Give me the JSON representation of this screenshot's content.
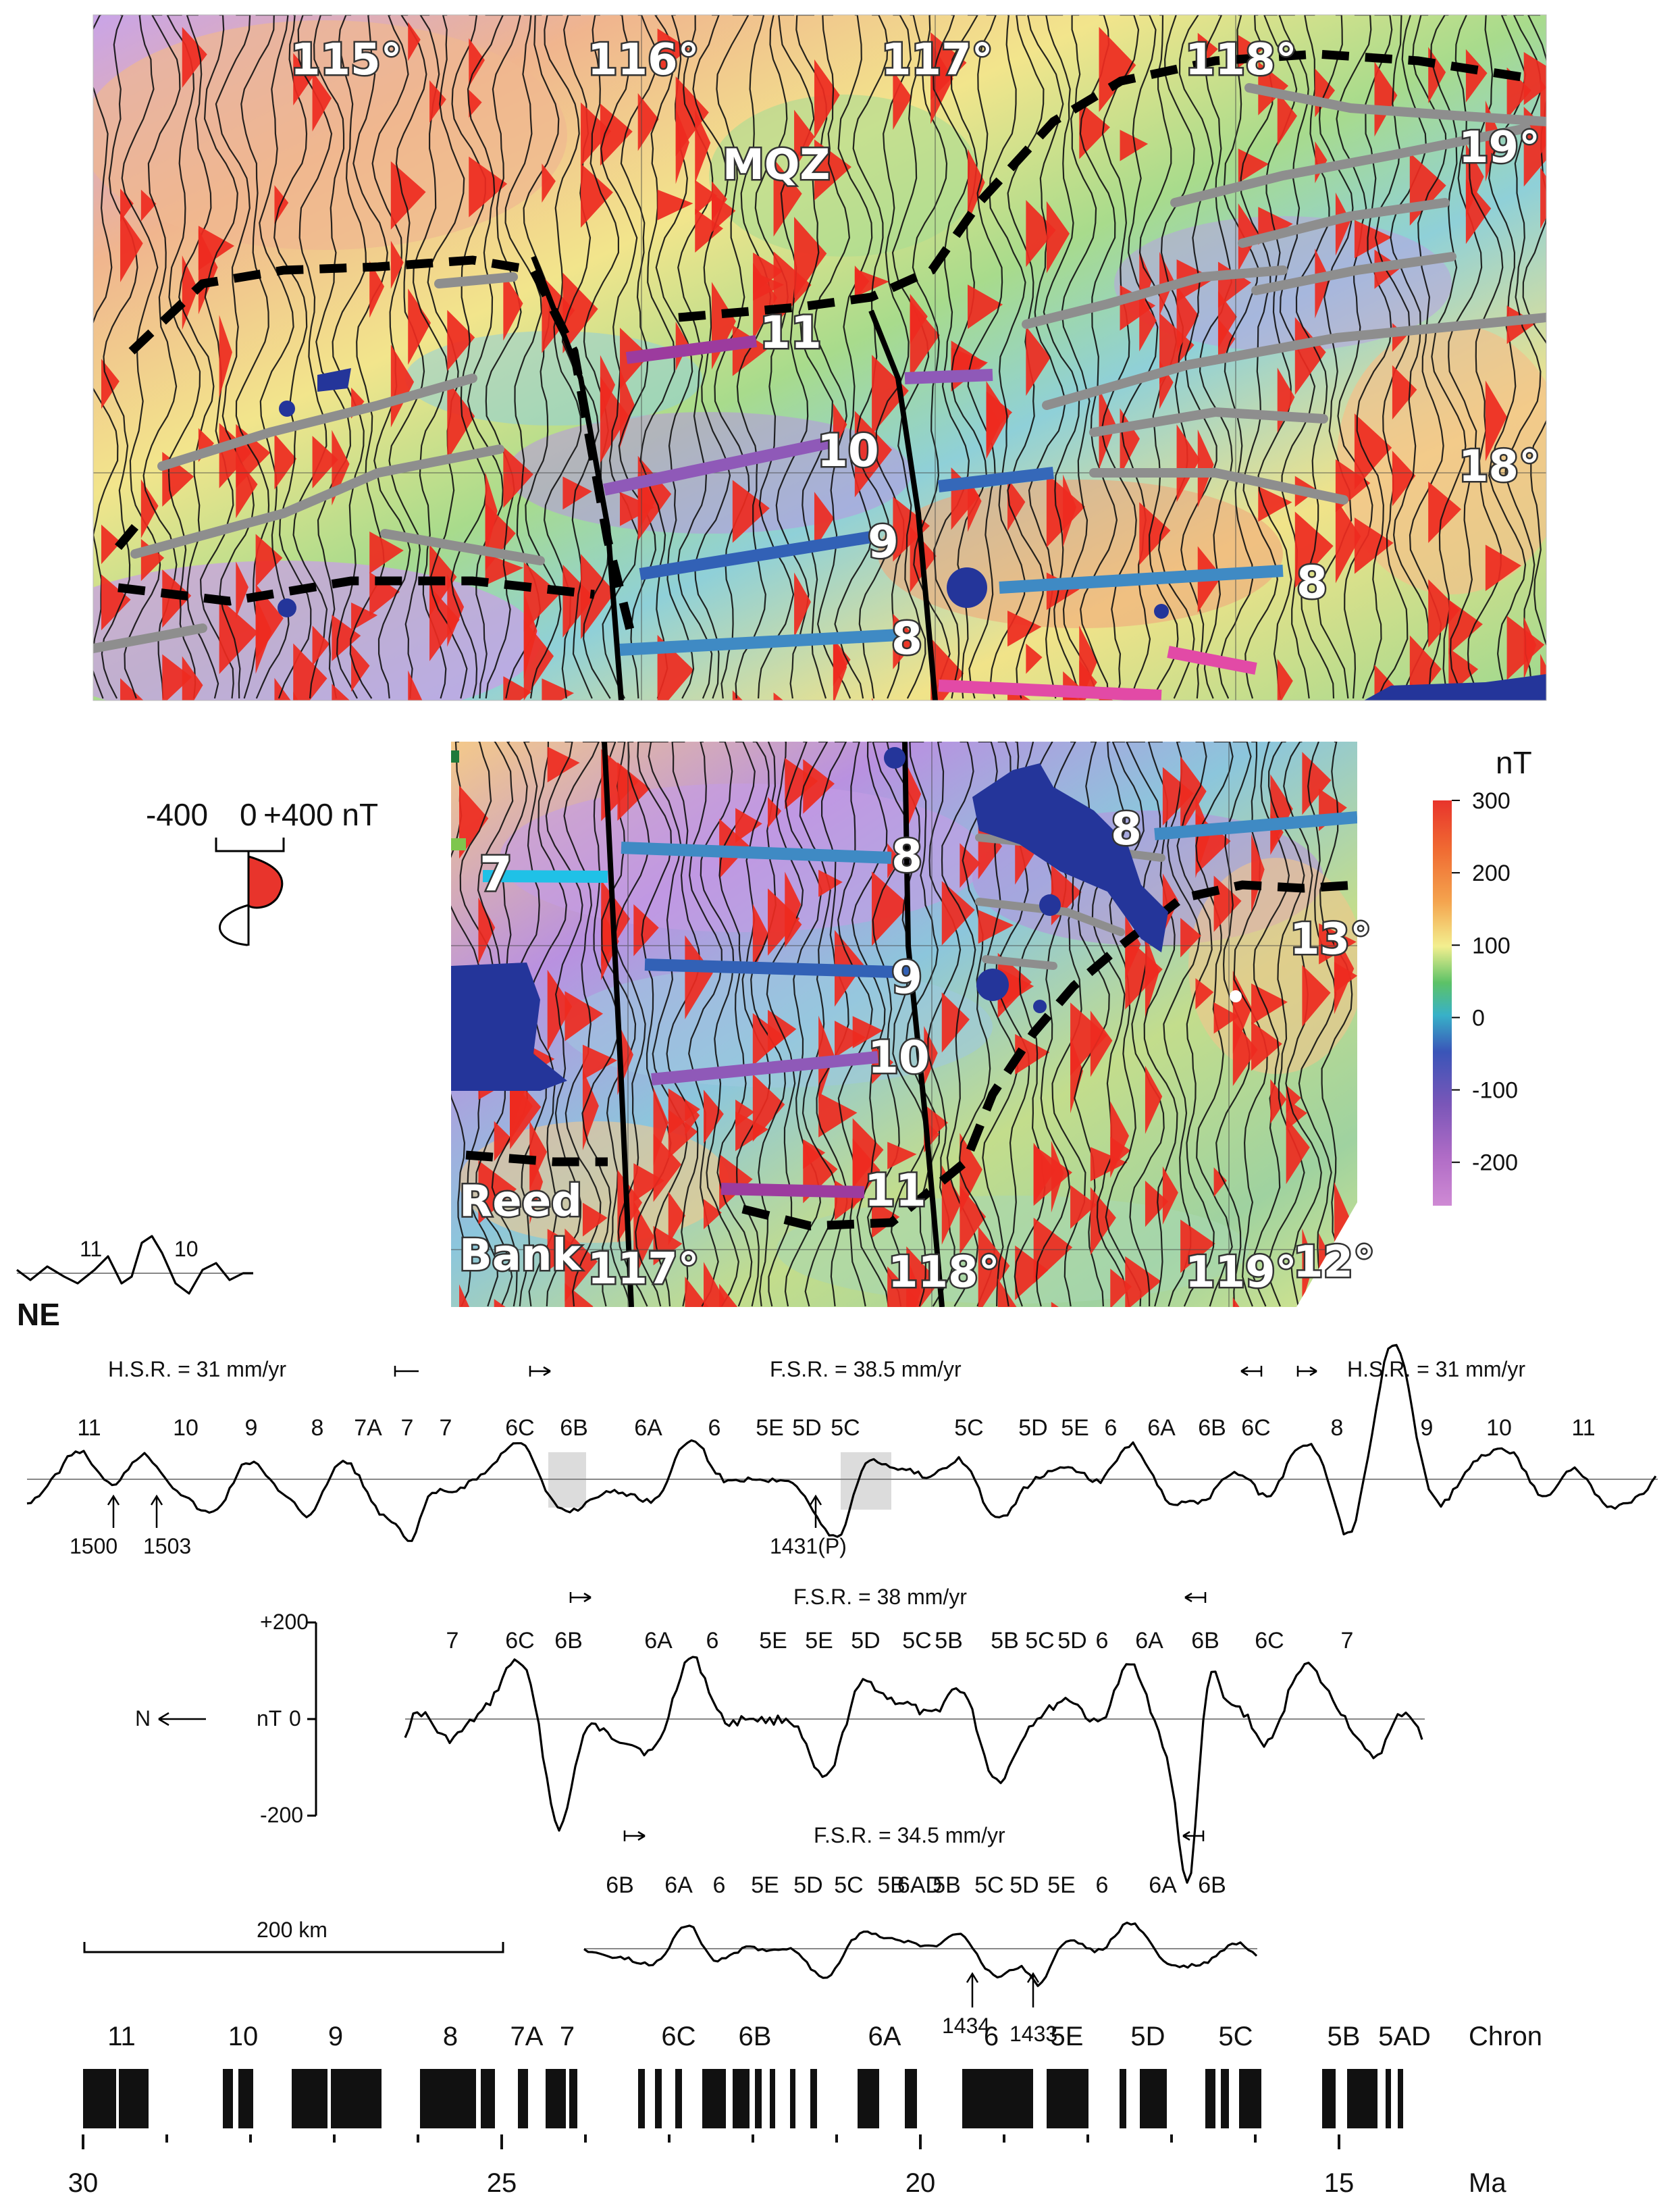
{
  "map_north": {
    "lon_labels": [
      "115°",
      "116°",
      "117°",
      "118°"
    ],
    "lat_labels": [
      "19°",
      "18°"
    ],
    "zone_label": "MQZ",
    "anomaly_labels": [
      "11",
      "10",
      "9",
      "8",
      "8"
    ]
  },
  "map_south": {
    "lon_labels": [
      "117°",
      "118°",
      "119°"
    ],
    "lat_labels": [
      "13°",
      "12°"
    ],
    "place_label_line1": "Reed",
    "place_label_line2": "Bank",
    "anomaly_labels": [
      "7",
      "8",
      "8",
      "9",
      "10",
      "11"
    ]
  },
  "wiggle_legend": {
    "minus": "-400",
    "zero": "0",
    "plus": "+400 nT"
  },
  "colorbar": {
    "unit": "nT",
    "ticks": [
      "300",
      "200",
      "100",
      "0",
      "-100",
      "-200"
    ],
    "tick_values": [
      300,
      200,
      100,
      0,
      -100,
      -200
    ],
    "colors": [
      "#e8342c",
      "#f08a3a",
      "#f4c46a",
      "#f3ef8f",
      "#5cc267",
      "#38b1c8",
      "#3a55b8",
      "#7a56b8",
      "#b06cc6",
      "#cf8ad4"
    ]
  },
  "small_profile": {
    "labels": [
      "11",
      "10"
    ],
    "direction": "NE"
  },
  "profile1": {
    "left_rate": "H.S.R. = 31 mm/yr",
    "center_rate": "F.S.R. = 38.5 mm/yr",
    "right_rate": "H.S.R. = 31 mm/yr",
    "chron_labels": [
      "11",
      "10",
      "9",
      "8",
      "7A",
      "7",
      "7",
      "6C",
      "6B",
      "6A",
      "6",
      "5E",
      "5D",
      "5C",
      "5C",
      "5D",
      "5E",
      "6",
      "6A",
      "6B",
      "6C",
      "8",
      "9",
      "10",
      "11"
    ],
    "sites": [
      "1500",
      "1503",
      "1431(P)"
    ]
  },
  "profile2": {
    "rate": "F.S.R. = 38 mm/yr",
    "chron_labels": [
      "7",
      "6C",
      "6B",
      "6A",
      "6",
      "5E",
      "5E",
      "5D",
      "5C",
      "5B",
      "5B",
      "5C",
      "5D",
      "6",
      "6A",
      "6B",
      "6C",
      "7"
    ],
    "axis_ticks": [
      "+200",
      "0",
      "-200"
    ],
    "axis_unit": "nT",
    "direction": "N"
  },
  "profile3": {
    "rate": "F.S.R. = 34.5 mm/yr",
    "chron_labels": [
      "6B",
      "6A",
      "6",
      "5E",
      "5D",
      "5C",
      "5B",
      "6AD",
      "5B",
      "5C",
      "5D",
      "5E",
      "6",
      "6A",
      "6B"
    ],
    "sites": [
      "1434",
      "1433"
    ]
  },
  "scale_bar": "200 km",
  "timescale": {
    "chron_labels": [
      "11",
      "10",
      "9",
      "8",
      "7A",
      "7",
      "6C",
      "6B",
      "6A",
      "6",
      "5E",
      "5D",
      "5C",
      "5B",
      "5AD"
    ],
    "chron_header": "Chron",
    "age_labels": [
      "30",
      "25",
      "20",
      "15"
    ],
    "age_unit": "Ma"
  }
}
